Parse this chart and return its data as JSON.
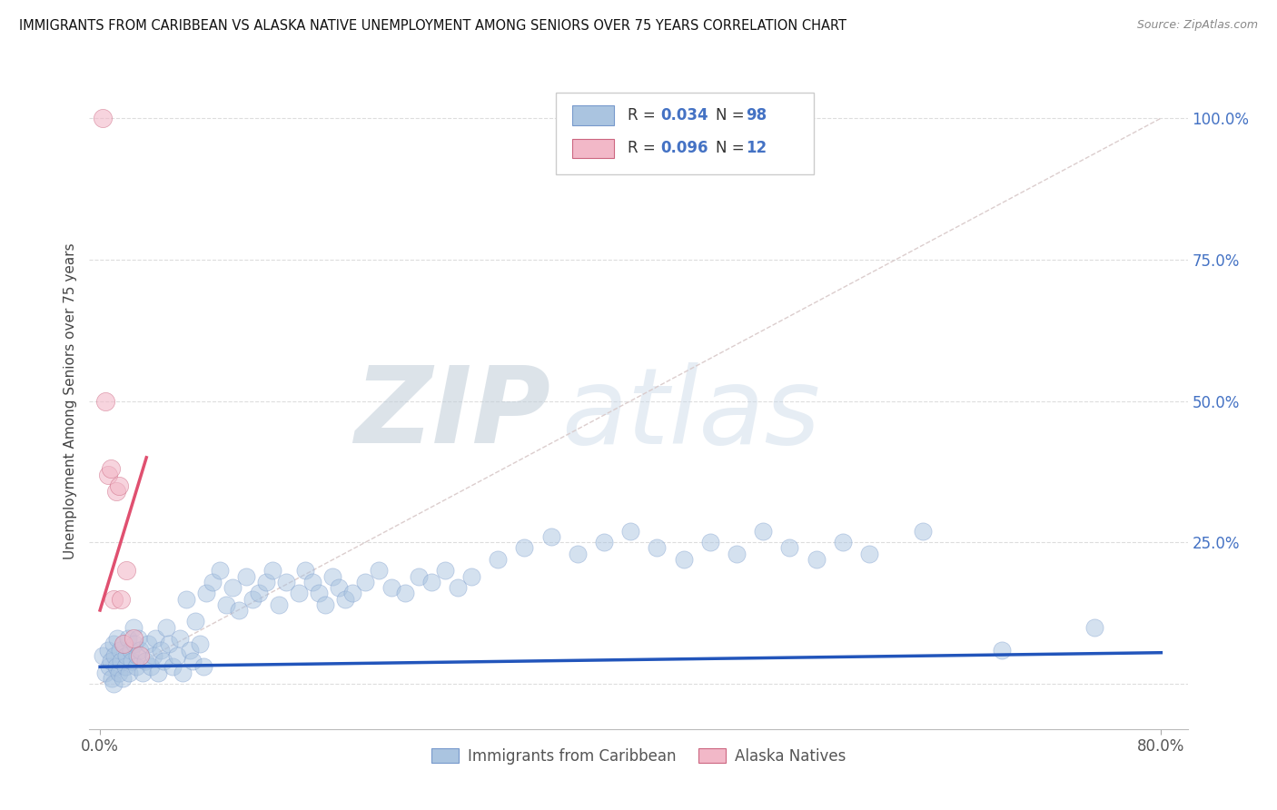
{
  "title": "IMMIGRANTS FROM CARIBBEAN VS ALASKA NATIVE UNEMPLOYMENT AMONG SENIORS OVER 75 YEARS CORRELATION CHART",
  "source": "Source: ZipAtlas.com",
  "ylabel": "Unemployment Among Seniors over 75 years",
  "color_blue": "#aac4e0",
  "color_pink": "#f2b8c8",
  "trendline_blue": "#2255bb",
  "trendline_pink": "#e05070",
  "refline_color": "#cccccc",
  "watermark_zip": "ZIP",
  "watermark_atlas": "atlas",
  "watermark_color_zip": "#b8c8d8",
  "watermark_color_atlas": "#b8c8d8",
  "legend_label1": "Immigrants from Caribbean",
  "legend_label2": "Alaska Natives",
  "blue_x": [
    0.002,
    0.004,
    0.006,
    0.007,
    0.008,
    0.009,
    0.01,
    0.01,
    0.011,
    0.012,
    0.013,
    0.014,
    0.015,
    0.016,
    0.017,
    0.018,
    0.019,
    0.02,
    0.021,
    0.022,
    0.023,
    0.024,
    0.025,
    0.026,
    0.027,
    0.028,
    0.029,
    0.03,
    0.032,
    0.034,
    0.036,
    0.038,
    0.04,
    0.042,
    0.044,
    0.046,
    0.048,
    0.05,
    0.052,
    0.055,
    0.058,
    0.06,
    0.062,
    0.065,
    0.068,
    0.07,
    0.072,
    0.075,
    0.078,
    0.08,
    0.085,
    0.09,
    0.095,
    0.1,
    0.105,
    0.11,
    0.115,
    0.12,
    0.125,
    0.13,
    0.135,
    0.14,
    0.15,
    0.155,
    0.16,
    0.165,
    0.17,
    0.175,
    0.18,
    0.185,
    0.19,
    0.2,
    0.21,
    0.22,
    0.23,
    0.24,
    0.25,
    0.26,
    0.27,
    0.28,
    0.3,
    0.32,
    0.34,
    0.36,
    0.38,
    0.4,
    0.42,
    0.44,
    0.46,
    0.48,
    0.5,
    0.52,
    0.54,
    0.56,
    0.58,
    0.62,
    0.68,
    0.75
  ],
  "blue_y": [
    0.05,
    0.02,
    0.06,
    0.03,
    0.04,
    0.01,
    0.07,
    0.0,
    0.05,
    0.03,
    0.08,
    0.02,
    0.06,
    0.04,
    0.01,
    0.07,
    0.03,
    0.05,
    0.08,
    0.02,
    0.06,
    0.04,
    0.1,
    0.07,
    0.03,
    0.05,
    0.08,
    0.06,
    0.02,
    0.04,
    0.07,
    0.03,
    0.05,
    0.08,
    0.02,
    0.06,
    0.04,
    0.1,
    0.07,
    0.03,
    0.05,
    0.08,
    0.02,
    0.15,
    0.06,
    0.04,
    0.11,
    0.07,
    0.03,
    0.16,
    0.18,
    0.2,
    0.14,
    0.17,
    0.13,
    0.19,
    0.15,
    0.16,
    0.18,
    0.2,
    0.14,
    0.18,
    0.16,
    0.2,
    0.18,
    0.16,
    0.14,
    0.19,
    0.17,
    0.15,
    0.16,
    0.18,
    0.2,
    0.17,
    0.16,
    0.19,
    0.18,
    0.2,
    0.17,
    0.19,
    0.22,
    0.24,
    0.26,
    0.23,
    0.25,
    0.27,
    0.24,
    0.22,
    0.25,
    0.23,
    0.27,
    0.24,
    0.22,
    0.25,
    0.23,
    0.27,
    0.06,
    0.1
  ],
  "pink_x": [
    0.002,
    0.004,
    0.006,
    0.008,
    0.01,
    0.012,
    0.014,
    0.016,
    0.018,
    0.02,
    0.025,
    0.03
  ],
  "pink_y": [
    1.0,
    0.5,
    0.37,
    0.38,
    0.15,
    0.34,
    0.35,
    0.15,
    0.07,
    0.2,
    0.08,
    0.05
  ]
}
